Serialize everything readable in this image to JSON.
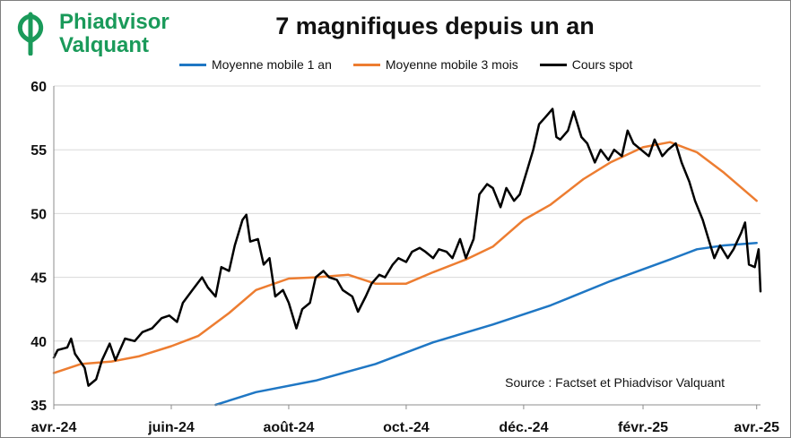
{
  "brand": {
    "line1": "Phiadvisor",
    "line2": "Valquant",
    "color": "#1a9a5a",
    "icon": "phi-leaf-icon"
  },
  "chart_data": {
    "type": "line",
    "title": "7 magnifiques depuis un an",
    "annotation": "Source : Factset et Phiadvisor Valquant",
    "ylim": [
      35,
      60
    ],
    "yticks": [
      "60",
      "55",
      "50",
      "45",
      "40",
      "35"
    ],
    "ytick_values": [
      60,
      55,
      50,
      45,
      40,
      35
    ],
    "xlim": [
      "2024-04-01",
      "2025-04-03"
    ],
    "xticks": [
      {
        "label": "avr.-24",
        "date": "2024-04-01"
      },
      {
        "label": "juin-24",
        "date": "2024-06-01"
      },
      {
        "label": "août-24",
        "date": "2024-08-01"
      },
      {
        "label": "oct.-24",
        "date": "2024-10-01"
      },
      {
        "label": "déc.-24",
        "date": "2024-12-01"
      },
      {
        "label": "févr.-25",
        "date": "2025-02-01"
      },
      {
        "label": "avr.-25",
        "date": "2025-04-01"
      }
    ],
    "grid": "horizontal",
    "legend_placement": "top",
    "series": [
      {
        "name": "Moyenne mobile 1 an",
        "color": "#1f77c4",
        "points": [
          [
            "2024-06-24",
            35.0
          ],
          [
            "2024-07-15",
            36.0
          ],
          [
            "2024-08-15",
            36.9
          ],
          [
            "2024-09-15",
            38.2
          ],
          [
            "2024-10-15",
            39.9
          ],
          [
            "2024-11-15",
            41.3
          ],
          [
            "2024-12-15",
            42.8
          ],
          [
            "2025-01-15",
            44.7
          ],
          [
            "2025-02-15",
            46.4
          ],
          [
            "2025-03-01",
            47.2
          ],
          [
            "2025-03-15",
            47.5
          ],
          [
            "2025-04-01",
            47.7
          ]
        ]
      },
      {
        "name": "Moyenne mobile 3 mois",
        "color": "#ed7d31",
        "points": [
          [
            "2024-04-01",
            37.5
          ],
          [
            "2024-04-15",
            38.2
          ],
          [
            "2024-05-01",
            38.4
          ],
          [
            "2024-05-15",
            38.8
          ],
          [
            "2024-06-01",
            39.6
          ],
          [
            "2024-06-15",
            40.4
          ],
          [
            "2024-07-01",
            42.2
          ],
          [
            "2024-07-15",
            44.0
          ],
          [
            "2024-08-01",
            44.9
          ],
          [
            "2024-08-15",
            45.0
          ],
          [
            "2024-09-01",
            45.2
          ],
          [
            "2024-09-15",
            44.5
          ],
          [
            "2024-10-01",
            44.5
          ],
          [
            "2024-10-15",
            45.4
          ],
          [
            "2024-11-01",
            46.4
          ],
          [
            "2024-11-15",
            47.4
          ],
          [
            "2024-12-01",
            49.5
          ],
          [
            "2024-12-15",
            50.7
          ],
          [
            "2025-01-01",
            52.7
          ],
          [
            "2025-01-15",
            54.0
          ],
          [
            "2025-02-01",
            55.2
          ],
          [
            "2025-02-15",
            55.6
          ],
          [
            "2025-03-01",
            54.8
          ],
          [
            "2025-03-15",
            53.2
          ],
          [
            "2025-04-01",
            51.0
          ]
        ]
      },
      {
        "name": "Cours spot",
        "color": "#000000",
        "points": [
          [
            "2024-04-01",
            38.7
          ],
          [
            "2024-04-03",
            39.3
          ],
          [
            "2024-04-08",
            39.5
          ],
          [
            "2024-04-10",
            40.2
          ],
          [
            "2024-04-12",
            39.0
          ],
          [
            "2024-04-17",
            37.9
          ],
          [
            "2024-04-19",
            36.5
          ],
          [
            "2024-04-23",
            37.0
          ],
          [
            "2024-04-26",
            38.5
          ],
          [
            "2024-04-30",
            39.8
          ],
          [
            "2024-05-03",
            38.5
          ],
          [
            "2024-05-08",
            40.2
          ],
          [
            "2024-05-13",
            40.0
          ],
          [
            "2024-05-17",
            40.7
          ],
          [
            "2024-05-22",
            41.0
          ],
          [
            "2024-05-27",
            41.8
          ],
          [
            "2024-05-31",
            42.0
          ],
          [
            "2024-06-04",
            41.5
          ],
          [
            "2024-06-07",
            43.0
          ],
          [
            "2024-06-12",
            44.0
          ],
          [
            "2024-06-17",
            45.0
          ],
          [
            "2024-06-20",
            44.2
          ],
          [
            "2024-06-24",
            43.5
          ],
          [
            "2024-06-27",
            45.8
          ],
          [
            "2024-07-01",
            45.5
          ],
          [
            "2024-07-04",
            47.5
          ],
          [
            "2024-07-08",
            49.5
          ],
          [
            "2024-07-10",
            49.9
          ],
          [
            "2024-07-12",
            47.8
          ],
          [
            "2024-07-16",
            48.0
          ],
          [
            "2024-07-19",
            46.0
          ],
          [
            "2024-07-22",
            46.5
          ],
          [
            "2024-07-25",
            43.5
          ],
          [
            "2024-07-29",
            44.0
          ],
          [
            "2024-08-01",
            43.0
          ],
          [
            "2024-08-05",
            41.0
          ],
          [
            "2024-08-08",
            42.5
          ],
          [
            "2024-08-12",
            43.0
          ],
          [
            "2024-08-15",
            45.0
          ],
          [
            "2024-08-19",
            45.5
          ],
          [
            "2024-08-22",
            45.0
          ],
          [
            "2024-08-26",
            44.8
          ],
          [
            "2024-08-29",
            44.0
          ],
          [
            "2024-09-03",
            43.5
          ],
          [
            "2024-09-06",
            42.3
          ],
          [
            "2024-09-10",
            43.5
          ],
          [
            "2024-09-13",
            44.5
          ],
          [
            "2024-09-17",
            45.2
          ],
          [
            "2024-09-20",
            45.0
          ],
          [
            "2024-09-24",
            46.0
          ],
          [
            "2024-09-27",
            46.5
          ],
          [
            "2024-10-01",
            46.2
          ],
          [
            "2024-10-04",
            47.0
          ],
          [
            "2024-10-08",
            47.3
          ],
          [
            "2024-10-11",
            47.0
          ],
          [
            "2024-10-15",
            46.5
          ],
          [
            "2024-10-18",
            47.2
          ],
          [
            "2024-10-22",
            47.0
          ],
          [
            "2024-10-25",
            46.5
          ],
          [
            "2024-10-29",
            48.0
          ],
          [
            "2024-11-01",
            46.5
          ],
          [
            "2024-11-05",
            48.0
          ],
          [
            "2024-11-08",
            51.5
          ],
          [
            "2024-11-12",
            52.3
          ],
          [
            "2024-11-15",
            52.0
          ],
          [
            "2024-11-19",
            50.5
          ],
          [
            "2024-11-22",
            52.0
          ],
          [
            "2024-11-26",
            51.0
          ],
          [
            "2024-11-29",
            51.5
          ],
          [
            "2024-12-03",
            53.5
          ],
          [
            "2024-12-06",
            55.0
          ],
          [
            "2024-12-09",
            57.0
          ],
          [
            "2024-12-12",
            57.5
          ],
          [
            "2024-12-16",
            58.2
          ],
          [
            "2024-12-18",
            56.0
          ],
          [
            "2024-12-20",
            55.8
          ],
          [
            "2024-12-24",
            56.5
          ],
          [
            "2024-12-27",
            58.0
          ],
          [
            "2024-12-31",
            56.0
          ],
          [
            "2025-01-03",
            55.5
          ],
          [
            "2025-01-07",
            54.0
          ],
          [
            "2025-01-10",
            55.0
          ],
          [
            "2025-01-14",
            54.2
          ],
          [
            "2025-01-17",
            55.0
          ],
          [
            "2025-01-21",
            54.5
          ],
          [
            "2025-01-24",
            56.5
          ],
          [
            "2025-01-27",
            55.5
          ],
          [
            "2025-01-31",
            55.0
          ],
          [
            "2025-02-04",
            54.5
          ],
          [
            "2025-02-07",
            55.8
          ],
          [
            "2025-02-11",
            54.5
          ],
          [
            "2025-02-14",
            55.0
          ],
          [
            "2025-02-18",
            55.5
          ],
          [
            "2025-02-21",
            54.0
          ],
          [
            "2025-02-25",
            52.5
          ],
          [
            "2025-02-28",
            51.0
          ],
          [
            "2025-03-04",
            49.5
          ],
          [
            "2025-03-07",
            48.0
          ],
          [
            "2025-03-10",
            46.5
          ],
          [
            "2025-03-13",
            47.5
          ],
          [
            "2025-03-17",
            46.5
          ],
          [
            "2025-03-20",
            47.2
          ],
          [
            "2025-03-24",
            48.5
          ],
          [
            "2025-03-26",
            49.3
          ],
          [
            "2025-03-28",
            46.0
          ],
          [
            "2025-03-31",
            45.8
          ],
          [
            "2025-04-02",
            47.2
          ],
          [
            "2025-04-03",
            43.9
          ]
        ]
      }
    ]
  }
}
